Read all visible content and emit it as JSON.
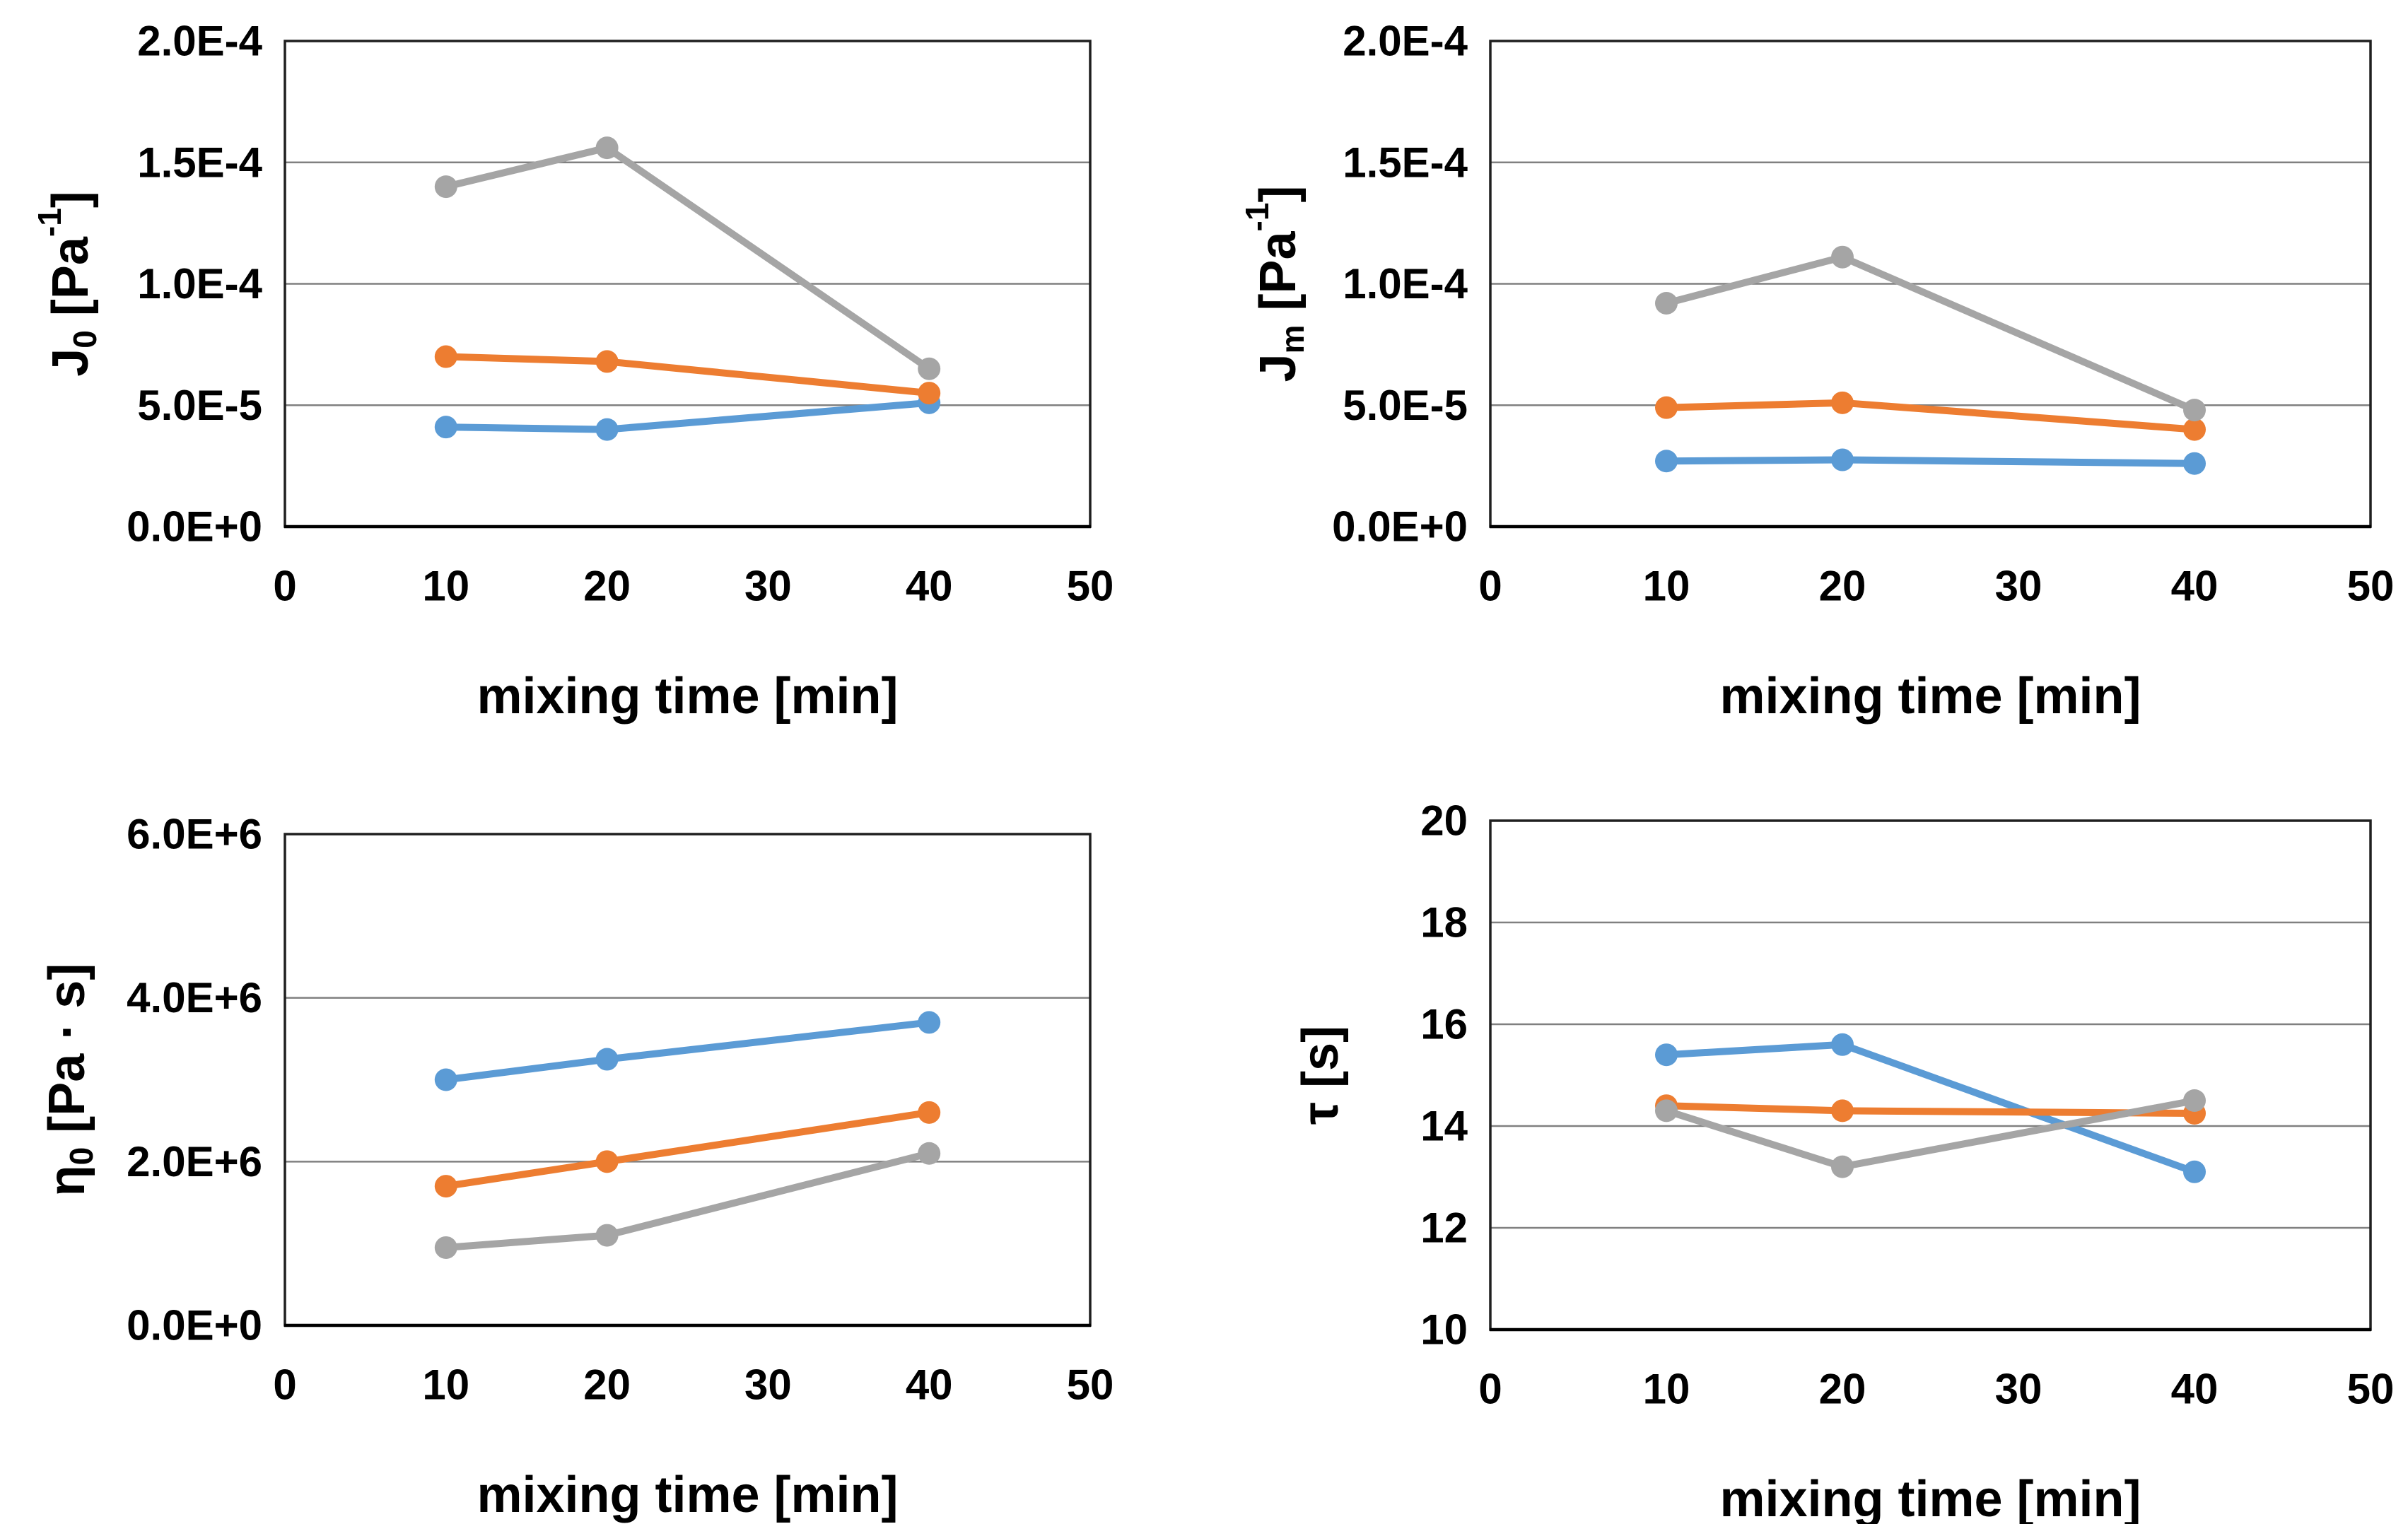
{
  "page": {
    "background": "#FFFFFF",
    "description": "Figure with four line charts of rheological parameters versus mixing time"
  },
  "colors": {
    "series_blue": "#5B9BD5",
    "series_orange": "#ED7D31",
    "series_gray": "#A5A5A5",
    "gridline": "#808080",
    "plot_border": "#1F1F1F",
    "axis_line": "#000000",
    "text": "#000000"
  },
  "chart_data": [
    {
      "id": "j0",
      "type": "line",
      "position": "top-left",
      "title": "",
      "xlabel": "mixing time [min]",
      "ylabel_plain": "J0 [Pa-1]",
      "ylabel_parts": [
        {
          "text": "J",
          "kind": "normal"
        },
        {
          "text": "0",
          "kind": "sub"
        },
        {
          "text": " [Pa",
          "kind": "normal"
        },
        {
          "text": "-1",
          "kind": "sup"
        },
        {
          "text": "]",
          "kind": "normal"
        }
      ],
      "xlim": [
        0,
        50
      ],
      "xticks": [
        0,
        10,
        20,
        30,
        40,
        50
      ],
      "ylim": [
        0,
        0.0002
      ],
      "yticks": [
        {
          "v": 0,
          "label": "0.0E+0"
        },
        {
          "v": 5e-05,
          "label": "5.0E-5"
        },
        {
          "v": 0.0001,
          "label": "1.0E-4"
        },
        {
          "v": 0.00015,
          "label": "1.5E-4"
        },
        {
          "v": 0.0002,
          "label": "2.0E-4"
        }
      ],
      "grid": true,
      "legend": "none",
      "x": [
        10,
        20,
        40
      ],
      "series": [
        {
          "name": "series-blue",
          "color_key": "series_blue",
          "values": [
            4.1e-05,
            4e-05,
            5.1e-05
          ]
        },
        {
          "name": "series-orange",
          "color_key": "series_orange",
          "values": [
            7e-05,
            6.8e-05,
            5.5e-05
          ]
        },
        {
          "name": "series-gray",
          "color_key": "series_gray",
          "values": [
            0.00014,
            0.000156,
            6.5e-05
          ]
        }
      ]
    },
    {
      "id": "jm",
      "type": "line",
      "position": "top-right",
      "title": "",
      "xlabel": "mixing time [min]",
      "ylabel_plain": "Jm [Pa-1]",
      "ylabel_parts": [
        {
          "text": "J",
          "kind": "normal"
        },
        {
          "text": "m",
          "kind": "sub"
        },
        {
          "text": " [Pa",
          "kind": "normal"
        },
        {
          "text": "-1",
          "kind": "sup"
        },
        {
          "text": "]",
          "kind": "normal"
        }
      ],
      "xlim": [
        0,
        50
      ],
      "xticks": [
        0,
        10,
        20,
        30,
        40,
        50
      ],
      "ylim": [
        0,
        0.0002
      ],
      "yticks": [
        {
          "v": 0,
          "label": "0.0E+0"
        },
        {
          "v": 5e-05,
          "label": "5.0E-5"
        },
        {
          "v": 0.0001,
          "label": "1.0E-4"
        },
        {
          "v": 0.00015,
          "label": "1.5E-4"
        },
        {
          "v": 0.0002,
          "label": "2.0E-4"
        }
      ],
      "grid": true,
      "legend": "none",
      "x": [
        10,
        20,
        40
      ],
      "series": [
        {
          "name": "series-blue",
          "color_key": "series_blue",
          "values": [
            2.7e-05,
            2.75e-05,
            2.6e-05
          ]
        },
        {
          "name": "series-orange",
          "color_key": "series_orange",
          "values": [
            4.9e-05,
            5.1e-05,
            4e-05
          ]
        },
        {
          "name": "series-gray",
          "color_key": "series_gray",
          "values": [
            9.2e-05,
            0.000111,
            4.8e-05
          ]
        }
      ]
    },
    {
      "id": "eta0",
      "type": "line",
      "position": "bottom-left",
      "title": "",
      "xlabel": "mixing time [min]",
      "ylabel_plain": "η0 [Pa · s]",
      "ylabel_parts": [
        {
          "text": "η",
          "kind": "normal"
        },
        {
          "text": "0",
          "kind": "sub"
        },
        {
          "text": " [Pa · s]",
          "kind": "normal"
        }
      ],
      "xlim": [
        0,
        50
      ],
      "xticks": [
        0,
        10,
        20,
        30,
        40,
        50
      ],
      "ylim": [
        0,
        6000000.0
      ],
      "yticks": [
        {
          "v": 0,
          "label": "0.0E+0"
        },
        {
          "v": 2000000.0,
          "label": "2.0E+6"
        },
        {
          "v": 4000000.0,
          "label": "4.0E+6"
        },
        {
          "v": 6000000.0,
          "label": "6.0E+6"
        }
      ],
      "grid": true,
      "legend": "none",
      "x": [
        10,
        20,
        40
      ],
      "series": [
        {
          "name": "series-blue",
          "color_key": "series_blue",
          "values": [
            3000000.0,
            3250000.0,
            3700000.0
          ]
        },
        {
          "name": "series-orange",
          "color_key": "series_orange",
          "values": [
            1700000.0,
            2000000.0,
            2600000.0
          ]
        },
        {
          "name": "series-gray",
          "color_key": "series_gray",
          "values": [
            950000.0,
            1100000.0,
            2100000.0
          ]
        }
      ]
    },
    {
      "id": "tau",
      "type": "line",
      "position": "bottom-right",
      "title": "",
      "xlabel": "mixing time [min]",
      "ylabel_plain": "τ [s]",
      "ylabel_parts": [
        {
          "text": "τ [s]",
          "kind": "normal"
        }
      ],
      "xlim": [
        0,
        50
      ],
      "xticks": [
        0,
        10,
        20,
        30,
        40,
        50
      ],
      "ylim": [
        10,
        20
      ],
      "yticks": [
        {
          "v": 10,
          "label": "10"
        },
        {
          "v": 12,
          "label": "12"
        },
        {
          "v": 14,
          "label": "14"
        },
        {
          "v": 16,
          "label": "16"
        },
        {
          "v": 18,
          "label": "18"
        },
        {
          "v": 20,
          "label": "20"
        }
      ],
      "grid": true,
      "legend": "none",
      "x": [
        10,
        20,
        40
      ],
      "series": [
        {
          "name": "series-blue",
          "color_key": "series_blue",
          "values": [
            15.4,
            15.6,
            13.1
          ]
        },
        {
          "name": "series-orange",
          "color_key": "series_orange",
          "values": [
            14.4,
            14.3,
            14.25
          ]
        },
        {
          "name": "series-gray",
          "color_key": "series_gray",
          "values": [
            14.3,
            13.2,
            14.5
          ]
        }
      ]
    }
  ]
}
